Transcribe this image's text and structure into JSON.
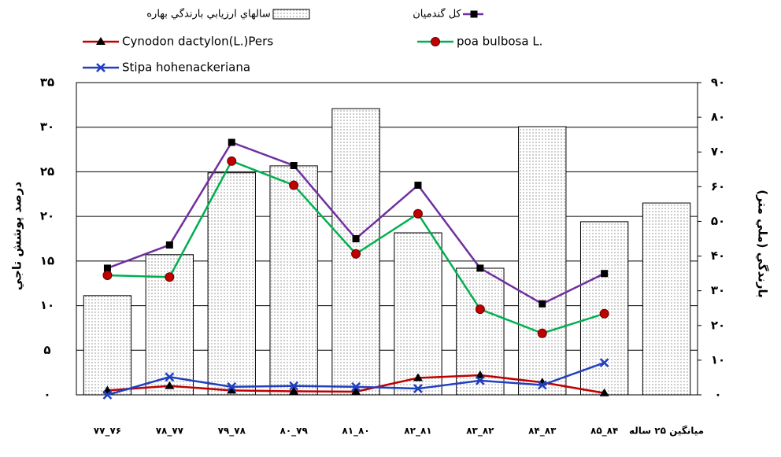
{
  "chart_data": {
    "type": "bar_line",
    "y_label": "درصد پوشش تاجي",
    "y2_label": "بارندگي (ملي متر)",
    "categories": [
      "۷۷_۷۶",
      "۷۸_۷۷",
      "۷۹_۷۸",
      "۸۰_۷۹",
      "۸۱_۸۰",
      "۸۲_۸۱",
      "۸۳_۸۲",
      "۸۴_۸۳",
      "۸۵_۸۴",
      "میانگین ۲۵ ساله"
    ],
    "ylim": [
      0,
      35
    ],
    "yticks": [
      {
        "value": 0,
        "label": "۰"
      },
      {
        "value": 5,
        "label": "۵"
      },
      {
        "value": 10,
        "label": "۱۰"
      },
      {
        "value": 15,
        "label": "۱۵"
      },
      {
        "value": 20,
        "label": "۲۰"
      },
      {
        "value": 25,
        "label": "۲۵"
      },
      {
        "value": 30,
        "label": "۳۰"
      },
      {
        "value": 35,
        "label": "۳۵"
      }
    ],
    "y2lim": [
      0,
      90
    ],
    "y2ticks": [
      {
        "value": 0,
        "label": "۰"
      },
      {
        "value": 10,
        "label": "۱۰"
      },
      {
        "value": 20,
        "label": "۲۰"
      },
      {
        "value": 30,
        "label": "۳۰"
      },
      {
        "value": 40,
        "label": "۴۰"
      },
      {
        "value": 50,
        "label": "۵۰"
      },
      {
        "value": 60,
        "label": "۶۰"
      },
      {
        "value": 70,
        "label": "۷۰"
      },
      {
        "value": 80,
        "label": "۸۰"
      },
      {
        "value": 90,
        "label": "۹۰"
      }
    ],
    "grid": true,
    "series": [
      {
        "name": "سالهاي ارزيابي بارندگي بهاره",
        "kind": "bar",
        "axis": "y2",
        "color": "#ffffff",
        "values": [
          28.6,
          40.4,
          64,
          66,
          82.5,
          46.7,
          36.5,
          77.3,
          49.9,
          55.3
        ]
      },
      {
        "name": "كل گندميان",
        "kind": "line",
        "marker": "square",
        "color": "#7030a0",
        "values": [
          14.2,
          16.8,
          28.3,
          25.7,
          17.5,
          23.5,
          14.2,
          10.2,
          13.6,
          null
        ]
      },
      {
        "name": "Cynodon dactylon(L.)Pers",
        "kind": "line",
        "marker": "triangle",
        "color": "#c00000",
        "values": [
          0.5,
          1.0,
          0.5,
          0.4,
          0.35,
          1.9,
          2.2,
          1.4,
          0.2,
          null
        ]
      },
      {
        "name": "poa bulbosa  L.",
        "kind": "line",
        "marker": "circle",
        "color": "#00b050",
        "values": [
          13.4,
          13.2,
          26.2,
          23.5,
          15.8,
          20.3,
          9.6,
          6.9,
          9.1,
          null
        ]
      },
      {
        "name": "Stipa hohenackeriana",
        "kind": "line",
        "marker": "x",
        "color": "#2040c0",
        "values": [
          0,
          2.0,
          0.9,
          1.0,
          0.9,
          0.7,
          1.6,
          1.1,
          3.6,
          null
        ]
      }
    ]
  }
}
